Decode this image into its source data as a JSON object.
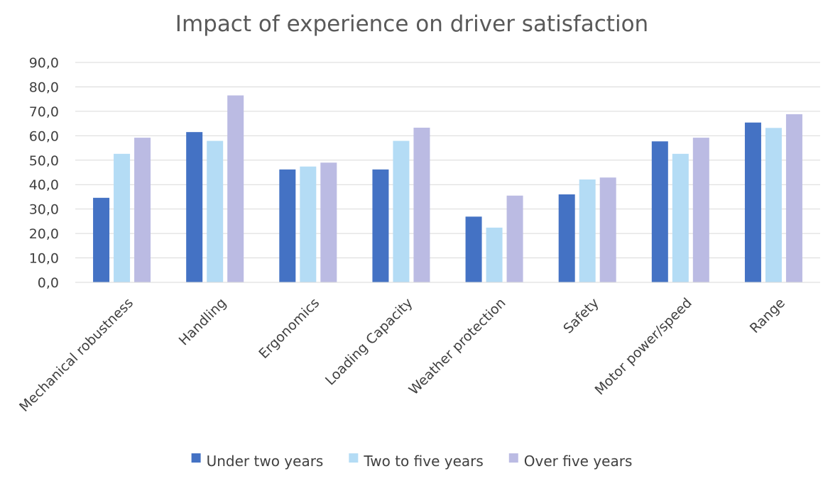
{
  "chart_data": {
    "type": "bar",
    "title": "Impact of experience on driver satisfaction",
    "xlabel": "",
    "ylabel": "",
    "ylim": [
      0,
      90
    ],
    "yticks": [
      "0,0",
      "10,0",
      "20,0",
      "30,0",
      "40,0",
      "50,0",
      "60,0",
      "70,0",
      "80,0",
      "90,0"
    ],
    "grid": true,
    "legend_position": "bottom",
    "categories": [
      "Mechanical robustness",
      "Handling",
      "Ergonomics",
      "Loading Capacity",
      "Weather protection",
      "Safety",
      "Motor power/speed",
      "Range"
    ],
    "series": [
      {
        "name": "Under two years",
        "color": "#4472c4",
        "values": [
          34.6,
          61.5,
          46.2,
          46.2,
          26.9,
          36.0,
          57.7,
          65.4
        ]
      },
      {
        "name": "Two to five years",
        "color": "#b4dcf5",
        "values": [
          52.6,
          57.9,
          47.4,
          57.9,
          22.4,
          42.1,
          52.6,
          63.2
        ]
      },
      {
        "name": "Over five years",
        "color": "#bbbbe3",
        "values": [
          59.2,
          76.5,
          49.0,
          63.3,
          35.5,
          42.9,
          59.2,
          68.8
        ]
      }
    ]
  }
}
